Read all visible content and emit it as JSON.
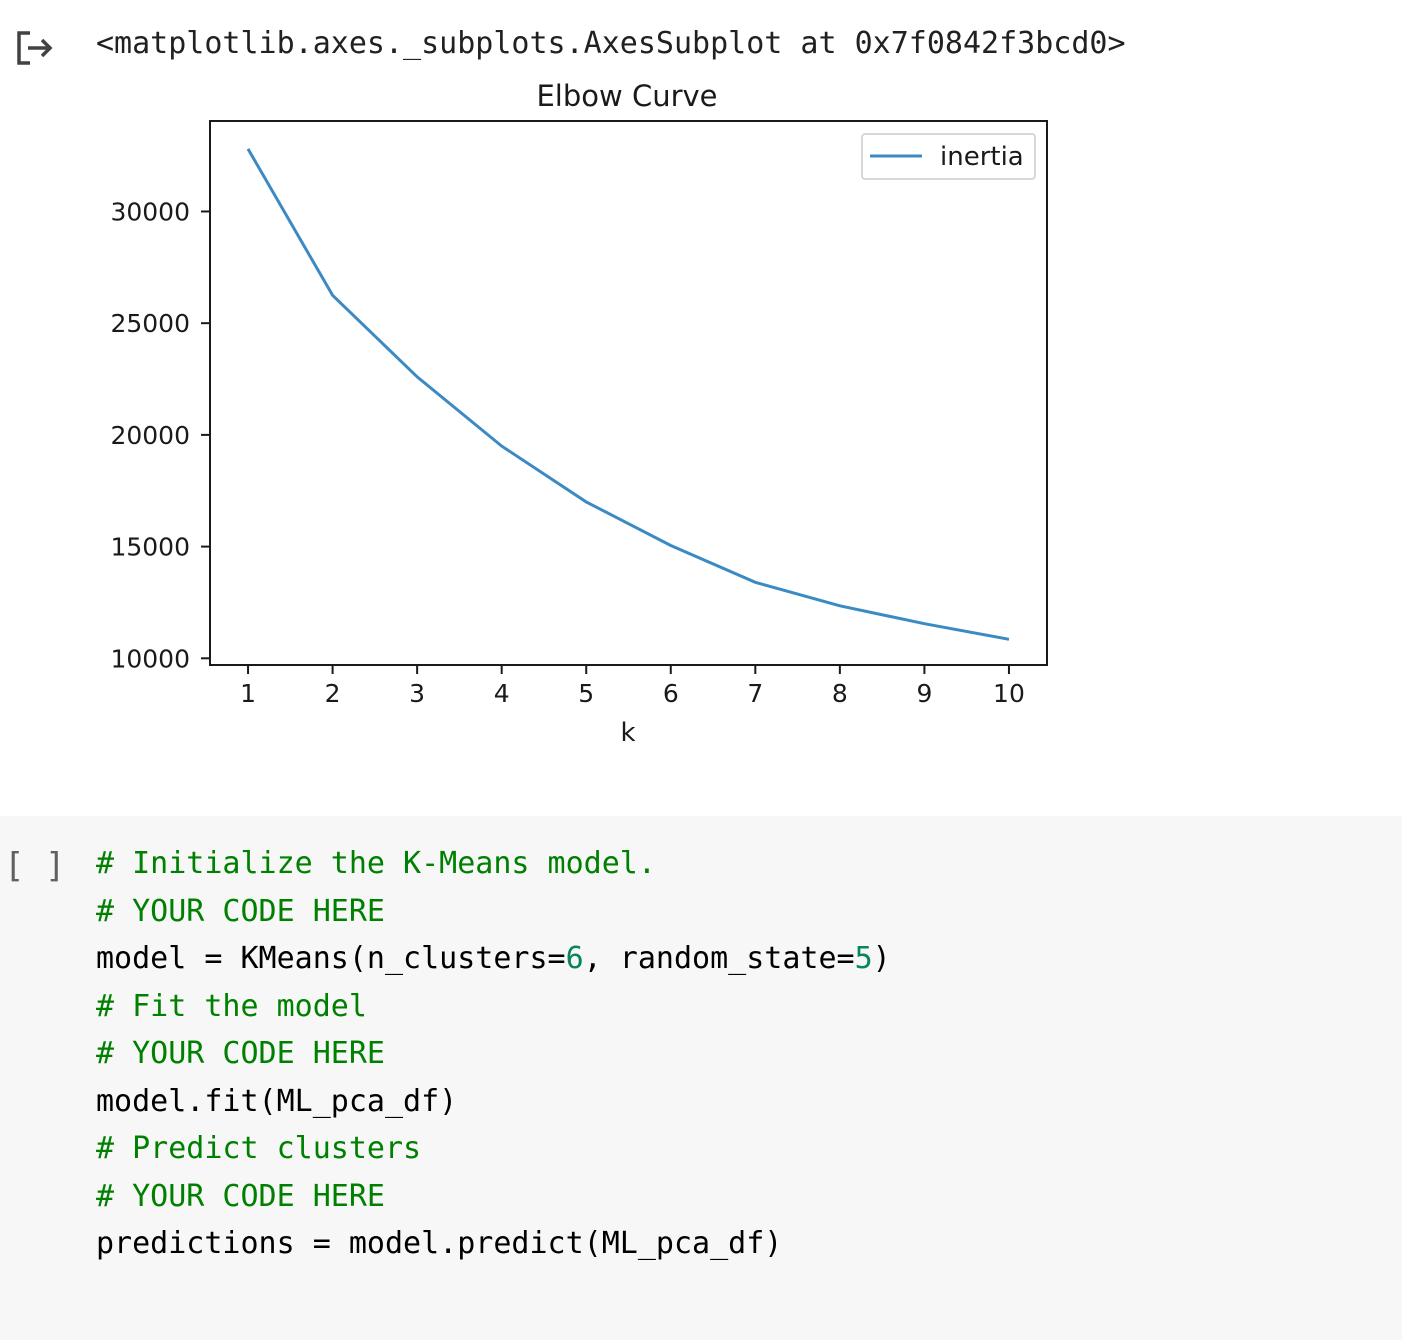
{
  "output": {
    "repr": "<matplotlib.axes._subplots.AxesSubplot at 0x7f0842f3bcd0>",
    "icon": "output-arrow-icon"
  },
  "chart_data": {
    "type": "line",
    "title": "Elbow Curve",
    "xlabel": "k",
    "ylabel": "",
    "x": [
      1,
      2,
      3,
      4,
      5,
      6,
      7,
      8,
      9,
      10
    ],
    "series": [
      {
        "name": "inertia",
        "values": [
          32800,
          26250,
          22600,
          19500,
          17000,
          15050,
          13400,
          12350,
          11550,
          10850
        ]
      }
    ],
    "xlim": [
      0.55,
      10.45
    ],
    "ylim": [
      9700,
      34050
    ],
    "xticks": [
      "1",
      "2",
      "3",
      "4",
      "5",
      "6",
      "7",
      "8",
      "9",
      "10"
    ],
    "yticks": [
      10000,
      15000,
      20000,
      25000,
      30000
    ],
    "ytick_labels": [
      "10000",
      "15000",
      "20000",
      "25000",
      "30000"
    ],
    "legend": "top-right",
    "grid": false,
    "line_color": "#3c8ac4"
  },
  "cell": {
    "run_label": "[ ]",
    "lines": [
      {
        "parts": [
          {
            "t": "# Initialize the K-Means model.",
            "k": "c"
          }
        ]
      },
      {
        "parts": [
          {
            "t": "# YOUR CODE HERE",
            "k": "c"
          }
        ]
      },
      {
        "parts": [
          {
            "t": "model = KMeans(n_clusters=",
            "k": ""
          },
          {
            "t": "6",
            "k": "n"
          },
          {
            "t": ", random_state=",
            "k": ""
          },
          {
            "t": "5",
            "k": "n"
          },
          {
            "t": ")",
            "k": ""
          }
        ]
      },
      {
        "parts": [
          {
            "t": "# Fit the model",
            "k": "c"
          }
        ]
      },
      {
        "parts": [
          {
            "t": "# YOUR CODE HERE",
            "k": "c"
          }
        ]
      },
      {
        "parts": [
          {
            "t": "model.fit(ML_pca_df)",
            "k": ""
          }
        ]
      },
      {
        "parts": [
          {
            "t": "# Predict clusters",
            "k": "c"
          }
        ]
      },
      {
        "parts": [
          {
            "t": "# YOUR CODE HERE",
            "k": "c"
          }
        ]
      },
      {
        "parts": [
          {
            "t": "predictions = model.predict(ML_pca_df)",
            "k": ""
          }
        ]
      }
    ]
  }
}
